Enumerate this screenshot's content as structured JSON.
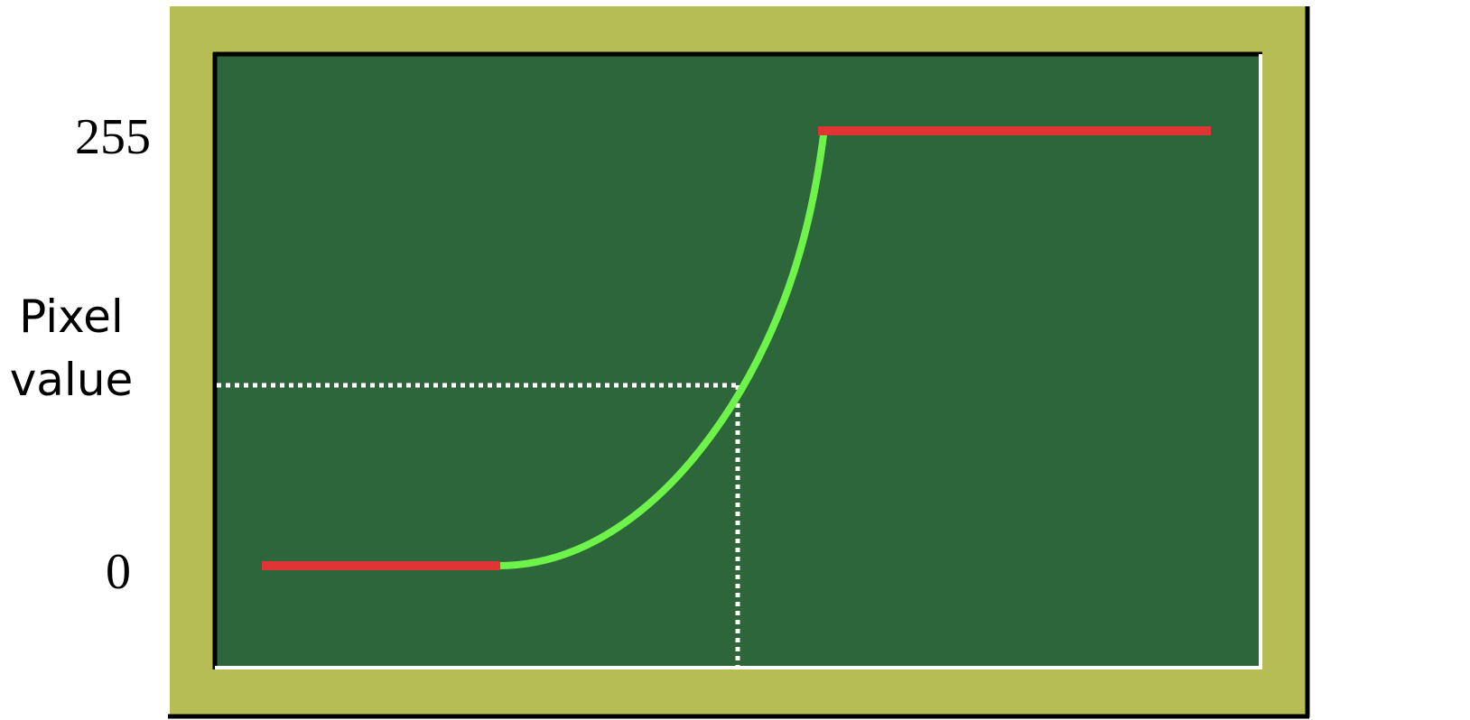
{
  "y_tick_top": "255",
  "y_tick_bottom": "0",
  "y_label_line1": "Pixel",
  "y_label_line2": "value",
  "colors": {
    "frame": "#b7bd55",
    "plot_background": "#2c663a",
    "clamped_segment": "#e03535",
    "curve": "#6ef34a",
    "guide_line": "#ffffff",
    "axis_dark": "#000000",
    "axis_light": "#ffffff"
  }
}
